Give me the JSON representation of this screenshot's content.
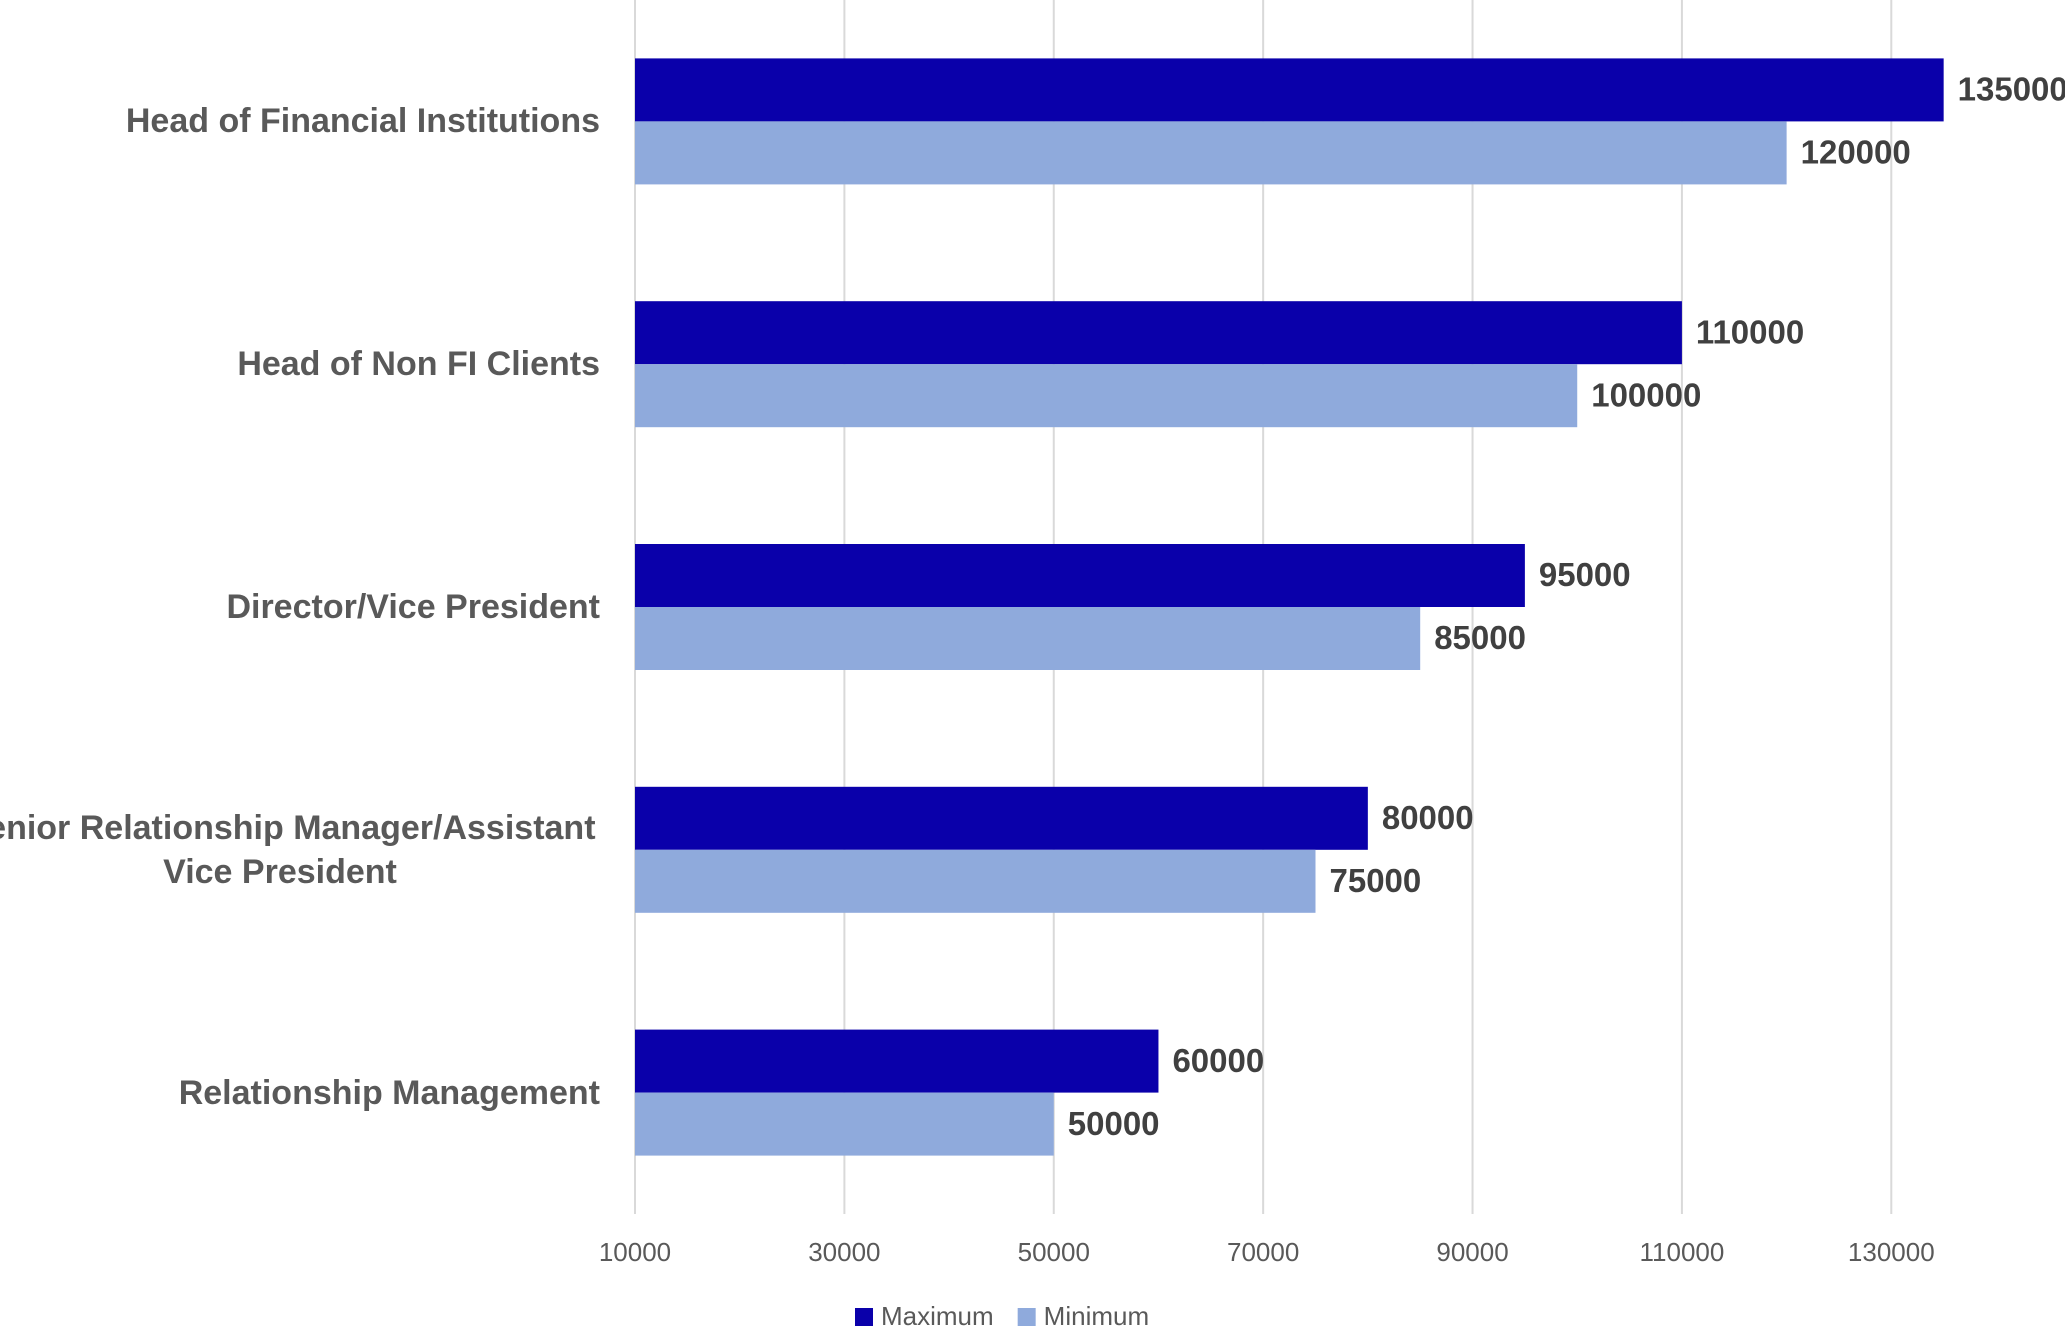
{
  "chart_data": {
    "type": "hbar",
    "categories": [
      "Head of Financial Institutions",
      "Head of Non FI Clients",
      "Director/Vice President",
      "Senior Relationship Manager/Assistant Vice President",
      "Relationship Management"
    ],
    "series": [
      {
        "name": "Maximum",
        "color": "#0a00aa",
        "values": [
          135000,
          110000,
          95000,
          80000,
          60000
        ]
      },
      {
        "name": "Minimum",
        "color": "#8faadc",
        "values": [
          120000,
          100000,
          85000,
          75000,
          50000
        ]
      }
    ],
    "xlim": [
      10000,
      140000
    ],
    "xticks": [
      10000,
      30000,
      50000,
      70000,
      90000,
      110000,
      130000
    ],
    "grid": true,
    "legend": "bottom"
  }
}
